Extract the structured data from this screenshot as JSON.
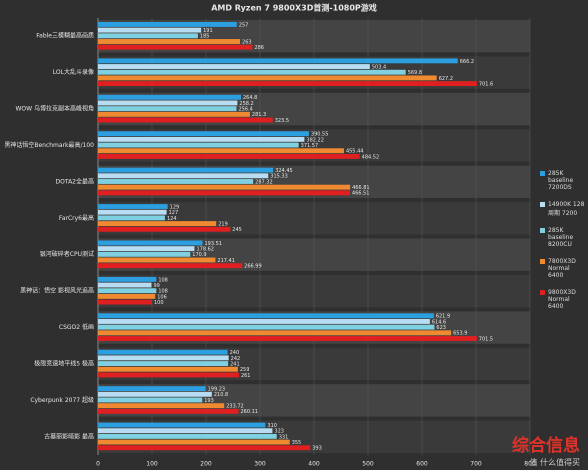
{
  "chart_data": {
    "type": "barh",
    "title": "AMD Ryzen 7 9800X3D首测-1080P游戏",
    "categories": [
      "Fable三模糊最高画质",
      "LOL大乱斗录像",
      "WOW 乌博拉克副本高峰视角",
      "黑神话悟空Benchmark最高/100",
      "DOTA2全最高",
      "FarCry6最高",
      "银河破碎者CPU测试",
      "黑神话：悟空 影视风光追高",
      "CSGO2 低画",
      "极限竞速地平线5 极高",
      "Cyberpunk 2077 超级",
      "古墓丽影暗影 最高"
    ],
    "series": [
      {
        "name": "285K baseline 7200DS",
        "color": "#2b9fe0",
        "values": [
          257,
          666.2,
          264.8,
          390.55,
          324.45,
          129,
          193.51,
          108,
          621.9,
          240,
          199.23,
          310
        ]
      },
      {
        "name": "14900K 128周期 7200",
        "color": "#b8dcf2",
        "values": [
          191,
          503.4,
          258.2,
          382.22,
          315.33,
          127,
          178.62,
          99,
          614.6,
          242,
          210.8,
          323
        ]
      },
      {
        "name": "285K baseline 8200CU",
        "color": "#7fd0e0",
        "values": [
          185,
          569.8,
          256.4,
          371.57,
          287.32,
          124,
          170.9,
          108,
          623.0,
          241,
          193.0,
          331
        ]
      },
      {
        "name": "7800X3D Normal 6400",
        "color": "#f08a30",
        "values": [
          263,
          627.2,
          281.3,
          455.44,
          466.81,
          219,
          217.41,
          106,
          653.9,
          259,
          233.72,
          355
        ]
      },
      {
        "name": "9800X3D Normal 6400",
        "color": "#e02020",
        "values": [
          286,
          701.6,
          323.5,
          484.52,
          466.51,
          245,
          266.99,
          100,
          701.5,
          261,
          260.11,
          393
        ]
      }
    ],
    "xlim": [
      0,
      800
    ],
    "xticks": [
      0,
      100,
      200,
      300,
      400,
      500,
      600,
      700,
      800
    ],
    "grid": true,
    "watermark": "综合信息",
    "watermark_sub": "值 什么值得买"
  }
}
